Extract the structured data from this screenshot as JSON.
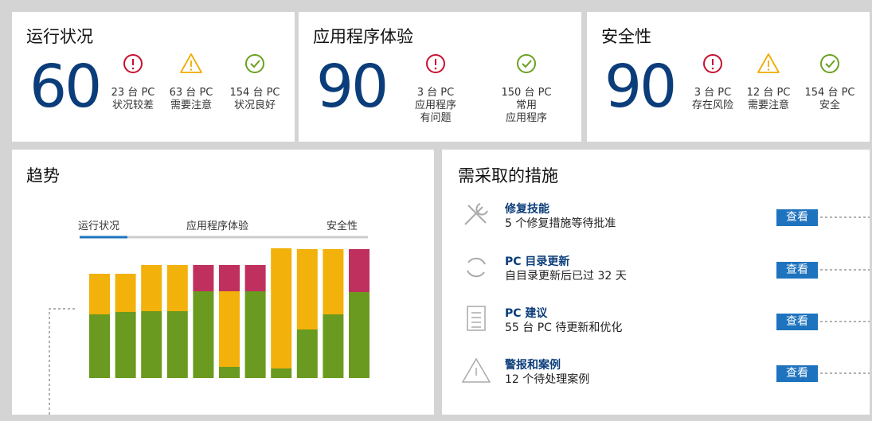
{
  "cards": [
    {
      "title": "运行状况",
      "score": 60,
      "items": [
        {
          "icon": "error",
          "color": "#c8102e",
          "lines": [
            "23 台 PC",
            "状况较差"
          ]
        },
        {
          "icon": "warning",
          "color": "#f0ab00",
          "lines": [
            "63 台 PC",
            "需要注意"
          ]
        },
        {
          "icon": "ok",
          "color": "#6aa121",
          "lines": [
            "154 台 PC",
            "状况良好"
          ]
        }
      ]
    },
    {
      "title": "应用程序体验",
      "score": 90,
      "items": [
        {
          "icon": "error",
          "color": "#c8102e",
          "lines": [
            "3 台 PC",
            "应用程序",
            "有问题"
          ]
        },
        {
          "icon": "ok",
          "color": "#6aa121",
          "lines": [
            "150 台 PC",
            "常用",
            "应用程序"
          ]
        }
      ]
    },
    {
      "title": "安全性",
      "score": 90,
      "items": [
        {
          "icon": "error",
          "color": "#c8102e",
          "lines": [
            "3 台 PC",
            "存在风险"
          ]
        },
        {
          "icon": "warning",
          "color": "#f0ab00",
          "lines": [
            "12 台 PC",
            "需要注意"
          ]
        },
        {
          "icon": "ok",
          "color": "#6aa121",
          "lines": [
            "154 台 PC",
            "安全"
          ]
        }
      ]
    }
  ],
  "trend": {
    "title": "趋势",
    "tabs": [
      "运行状况",
      "应用程序体验",
      "安全性"
    ],
    "chart_data": {
      "type": "bar",
      "stacked": true,
      "categories": [
        null,
        null,
        null,
        null,
        null,
        null,
        null,
        null,
        null,
        null,
        null
      ],
      "ylim": [
        0,
        165
      ],
      "series": [
        {
          "color": "#6a9a1f",
          "values": [
            80,
            83,
            84,
            84,
            109,
            14,
            109,
            12,
            61,
            80,
            108
          ]
        },
        {
          "color": "#f2b10b",
          "values": [
            51,
            48,
            58,
            58,
            0,
            95,
            0,
            151,
            101,
            82,
            0
          ]
        },
        {
          "color": "#c0305e",
          "values": [
            0,
            0,
            0,
            0,
            33,
            33,
            33,
            0,
            0,
            0,
            54
          ]
        }
      ]
    }
  },
  "actions": {
    "title": "需采取的措施",
    "items": [
      {
        "icon": "tools",
        "title": "修复技能",
        "subtitle": "5 个修复措施等待批准",
        "button": "查看"
      },
      {
        "icon": "refresh",
        "title": "PC 目录更新",
        "subtitle": "自目录更新后已过 32 天",
        "button": "查看"
      },
      {
        "icon": "list",
        "title": "PC 建议",
        "subtitle": "55 台 PC 待更新和优化",
        "button": "查看"
      },
      {
        "icon": "alert",
        "title": "警报和案例",
        "subtitle": "12 个待处理案例",
        "button": "查看"
      }
    ]
  }
}
